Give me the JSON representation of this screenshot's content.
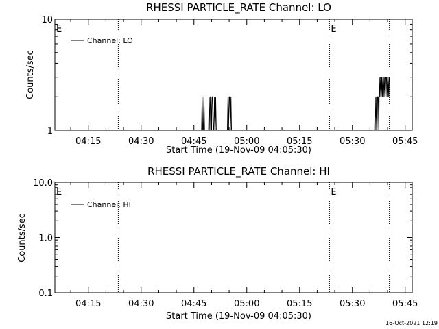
{
  "footer_timestamp": "16-Oct-2021 12:19",
  "colors": {
    "background": "#ffffff",
    "foreground": "#000000"
  },
  "chart_data": [
    {
      "type": "line",
      "title": "RHESSI PARTICLE_RATE Channel: LO",
      "xlabel": "Start Time (19-Nov-09 04:05:30)",
      "ylabel": "Counts/sec",
      "y_scale": "log",
      "ylim": [
        1,
        10
      ],
      "y_ticks": [
        {
          "value": 1,
          "label": "1"
        },
        {
          "value": 10,
          "label": "10"
        }
      ],
      "xlim": [
        "04:05:30",
        "05:47:00"
      ],
      "x_ticks": [
        "04:15",
        "04:30",
        "04:45",
        "05:00",
        "05:15",
        "05:30",
        "05:45"
      ],
      "event_lines": [
        "04:23:30",
        "05:23:30",
        "05:40:30"
      ],
      "event_markers": [
        {
          "x": "04:05:30",
          "label": "E"
        },
        {
          "x": "05:23:30",
          "label": "E"
        }
      ],
      "legend": {
        "label": "Channel: LO",
        "position": "top-left"
      },
      "grid": false,
      "series": [
        {
          "name": "Channel: LO",
          "x": [
            "04:47:10",
            "04:47:20",
            "04:47:30",
            "04:47:40",
            "04:47:50",
            "04:48:00",
            "04:49:10",
            "04:49:20",
            "04:49:30",
            "04:49:40",
            "04:49:50",
            "04:50:00",
            "04:50:10",
            "04:50:20",
            "04:50:30",
            "04:50:40",
            "04:50:50",
            "04:51:00",
            "04:51:10",
            "04:51:20",
            "04:51:30",
            "04:54:30",
            "04:54:40",
            "04:54:50",
            "04:55:00",
            "04:55:10",
            "04:55:20",
            "04:55:30",
            "04:55:40",
            "05:36:20",
            "05:36:30",
            "05:36:40",
            "05:36:50",
            "05:37:00",
            "05:37:10",
            "05:37:20",
            "05:37:30",
            "05:37:40",
            "05:37:50",
            "05:38:00",
            "05:38:10",
            "05:38:20",
            "05:38:30",
            "05:38:40",
            "05:38:50",
            "05:39:00",
            "05:39:10",
            "05:39:20",
            "05:39:30",
            "05:39:40",
            "05:39:50",
            "05:40:00",
            "05:40:10",
            "05:40:20",
            "05:40:30"
          ],
          "values": [
            1,
            2,
            1,
            1,
            2,
            1,
            1,
            2,
            1,
            2,
            2,
            1,
            2,
            2,
            1,
            1,
            2,
            1,
            2,
            1,
            1,
            1,
            2,
            1,
            2,
            2,
            1,
            2,
            1,
            1,
            2,
            1,
            2,
            1,
            2,
            2,
            1,
            3,
            2,
            3,
            2,
            3,
            2,
            3,
            3,
            2,
            3,
            2,
            3,
            3,
            2,
            3,
            3,
            2,
            3
          ]
        }
      ]
    },
    {
      "type": "line",
      "title": "RHESSI PARTICLE_RATE Channel: HI",
      "xlabel": "Start Time (19-Nov-09 04:05:30)",
      "ylabel": "Counts/sec",
      "y_scale": "log",
      "ylim": [
        0.1,
        10
      ],
      "y_ticks": [
        {
          "value": 0.1,
          "label": "0.1"
        },
        {
          "value": 1,
          "label": "1.0"
        },
        {
          "value": 10,
          "label": "10.0"
        }
      ],
      "xlim": [
        "04:05:30",
        "05:47:00"
      ],
      "x_ticks": [
        "04:15",
        "04:30",
        "04:45",
        "05:00",
        "05:15",
        "05:30",
        "05:45"
      ],
      "event_lines": [
        "04:23:30",
        "05:23:30",
        "05:40:30"
      ],
      "event_markers": [
        {
          "x": "04:05:30",
          "label": "E"
        },
        {
          "x": "05:23:30",
          "label": "E"
        }
      ],
      "legend": {
        "label": "Channel: HI",
        "position": "top-left"
      },
      "grid": false,
      "series": [
        {
          "name": "Channel: HI",
          "x": [],
          "values": []
        }
      ]
    }
  ]
}
